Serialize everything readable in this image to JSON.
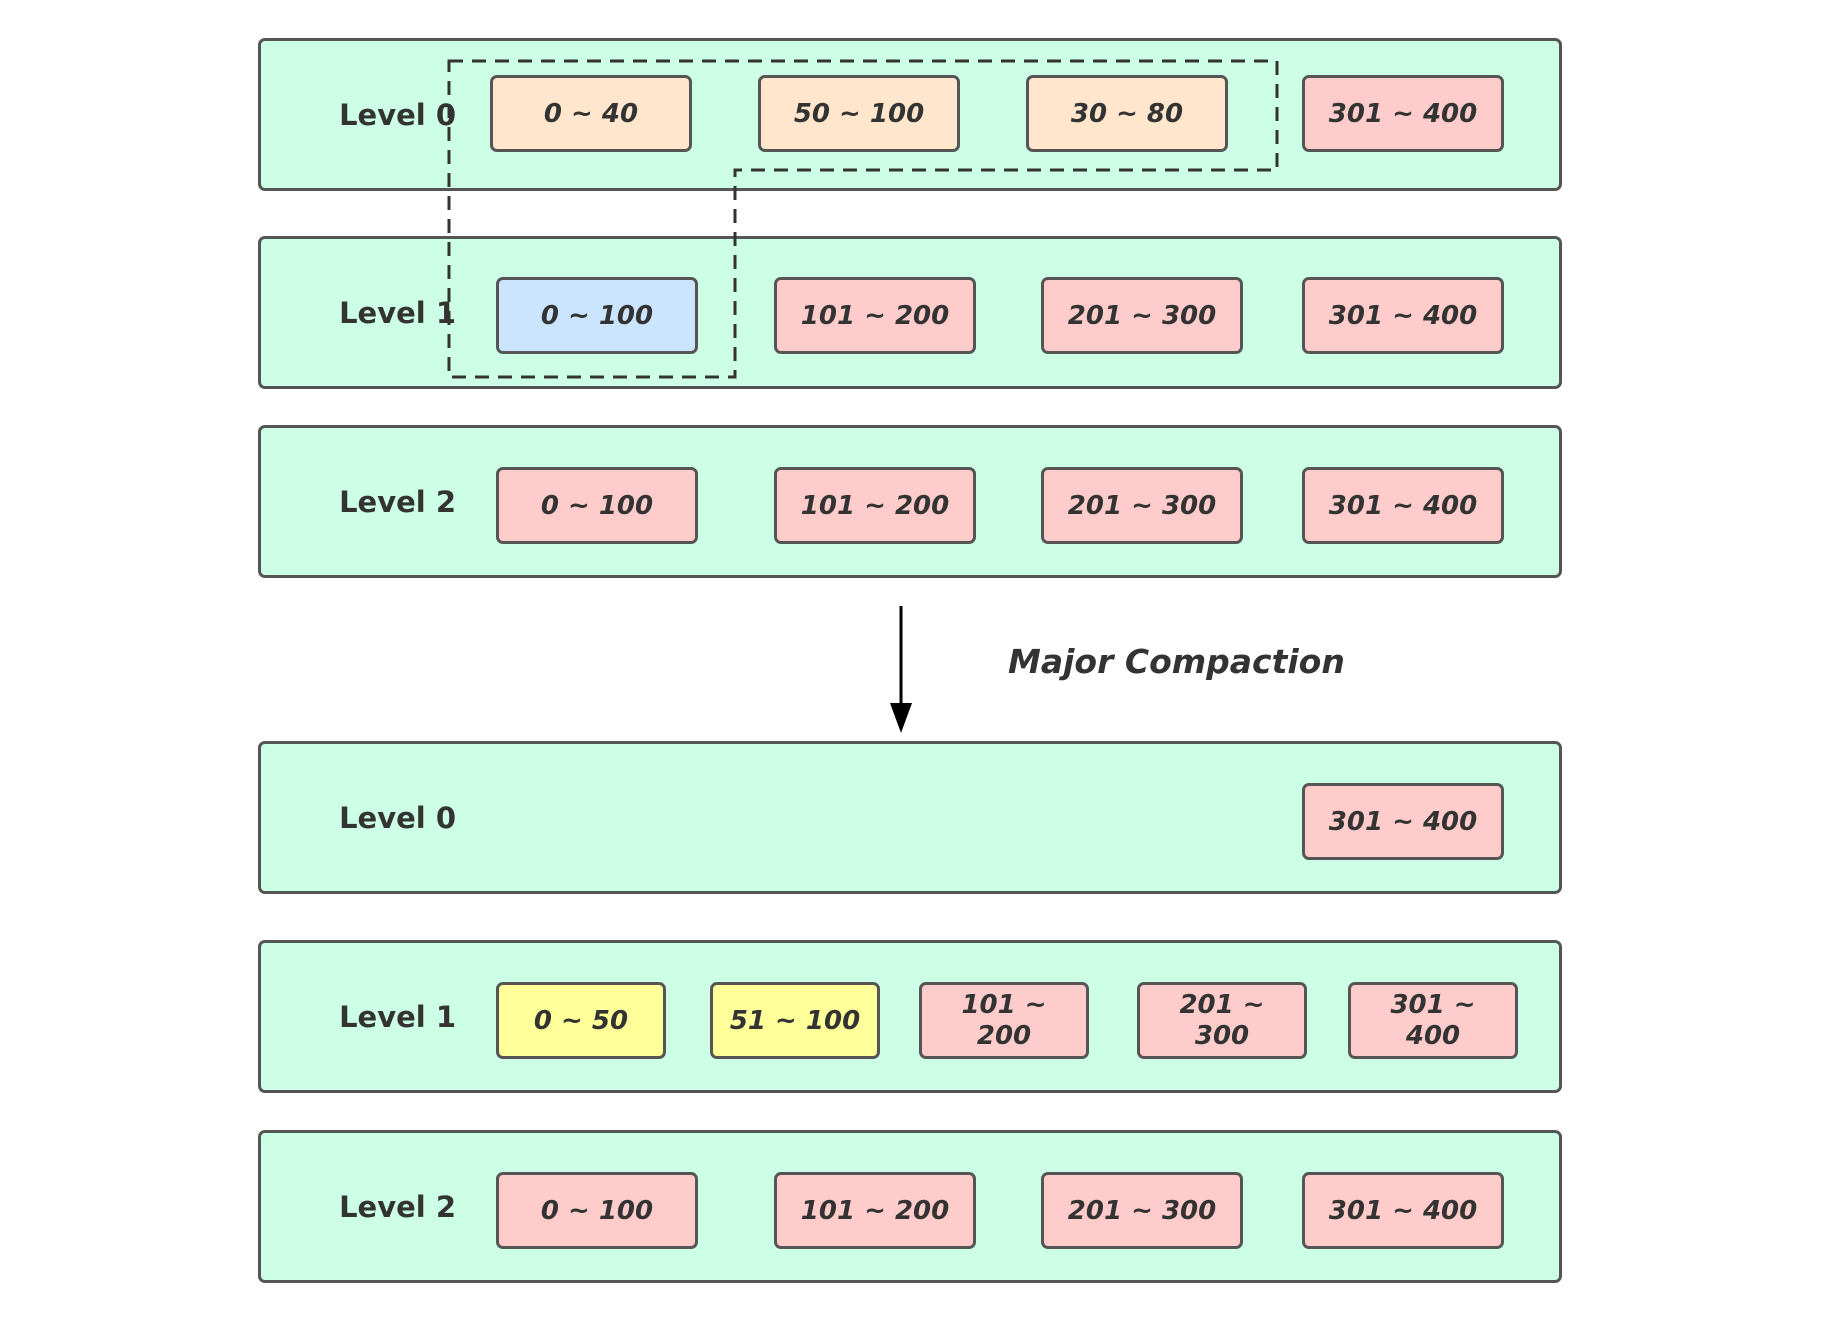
{
  "colors": {
    "level_bg": "#ccffe6",
    "border": "#555555",
    "pink": "#ffcccc",
    "peach": "#ffe6cc",
    "blue": "#cce5ff",
    "yellow": "#ffff99"
  },
  "before": {
    "levels": [
      {
        "label": "Level 0",
        "files": [
          {
            "range": "0 ~ 40",
            "color": "peach"
          },
          {
            "range": "50 ~ 100",
            "color": "peach"
          },
          {
            "range": "30 ~ 80",
            "color": "peach"
          },
          {
            "range": "301 ~ 400",
            "color": "pink"
          }
        ]
      },
      {
        "label": "Level 1",
        "files": [
          {
            "range": "0 ~ 100",
            "color": "blue"
          },
          {
            "range": "101 ~ 200",
            "color": "pink"
          },
          {
            "range": "201 ~ 300",
            "color": "pink"
          },
          {
            "range": "301 ~ 400",
            "color": "pink"
          }
        ]
      },
      {
        "label": "Level 2",
        "files": [
          {
            "range": "0 ~ 100",
            "color": "pink"
          },
          {
            "range": "101 ~ 200",
            "color": "pink"
          },
          {
            "range": "201 ~ 300",
            "color": "pink"
          },
          {
            "range": "301 ~ 400",
            "color": "pink"
          }
        ]
      }
    ]
  },
  "transition": {
    "label": "Major Compaction"
  },
  "after": {
    "levels": [
      {
        "label": "Level 0",
        "files": [
          {
            "range": "301 ~ 400",
            "color": "pink"
          }
        ]
      },
      {
        "label": "Level 1",
        "files": [
          {
            "range": "0 ~ 50",
            "color": "yellow"
          },
          {
            "range": "51 ~ 100",
            "color": "yellow"
          },
          {
            "range": "101 ~ 200",
            "color": "pink"
          },
          {
            "range": "201 ~ 300",
            "color": "pink"
          },
          {
            "range": "301 ~ 400",
            "color": "pink"
          }
        ]
      },
      {
        "label": "Level 2",
        "files": [
          {
            "range": "0 ~ 100",
            "color": "pink"
          },
          {
            "range": "101 ~ 200",
            "color": "pink"
          },
          {
            "range": "201 ~ 300",
            "color": "pink"
          },
          {
            "range": "301 ~ 400",
            "color": "pink"
          }
        ]
      }
    ]
  }
}
